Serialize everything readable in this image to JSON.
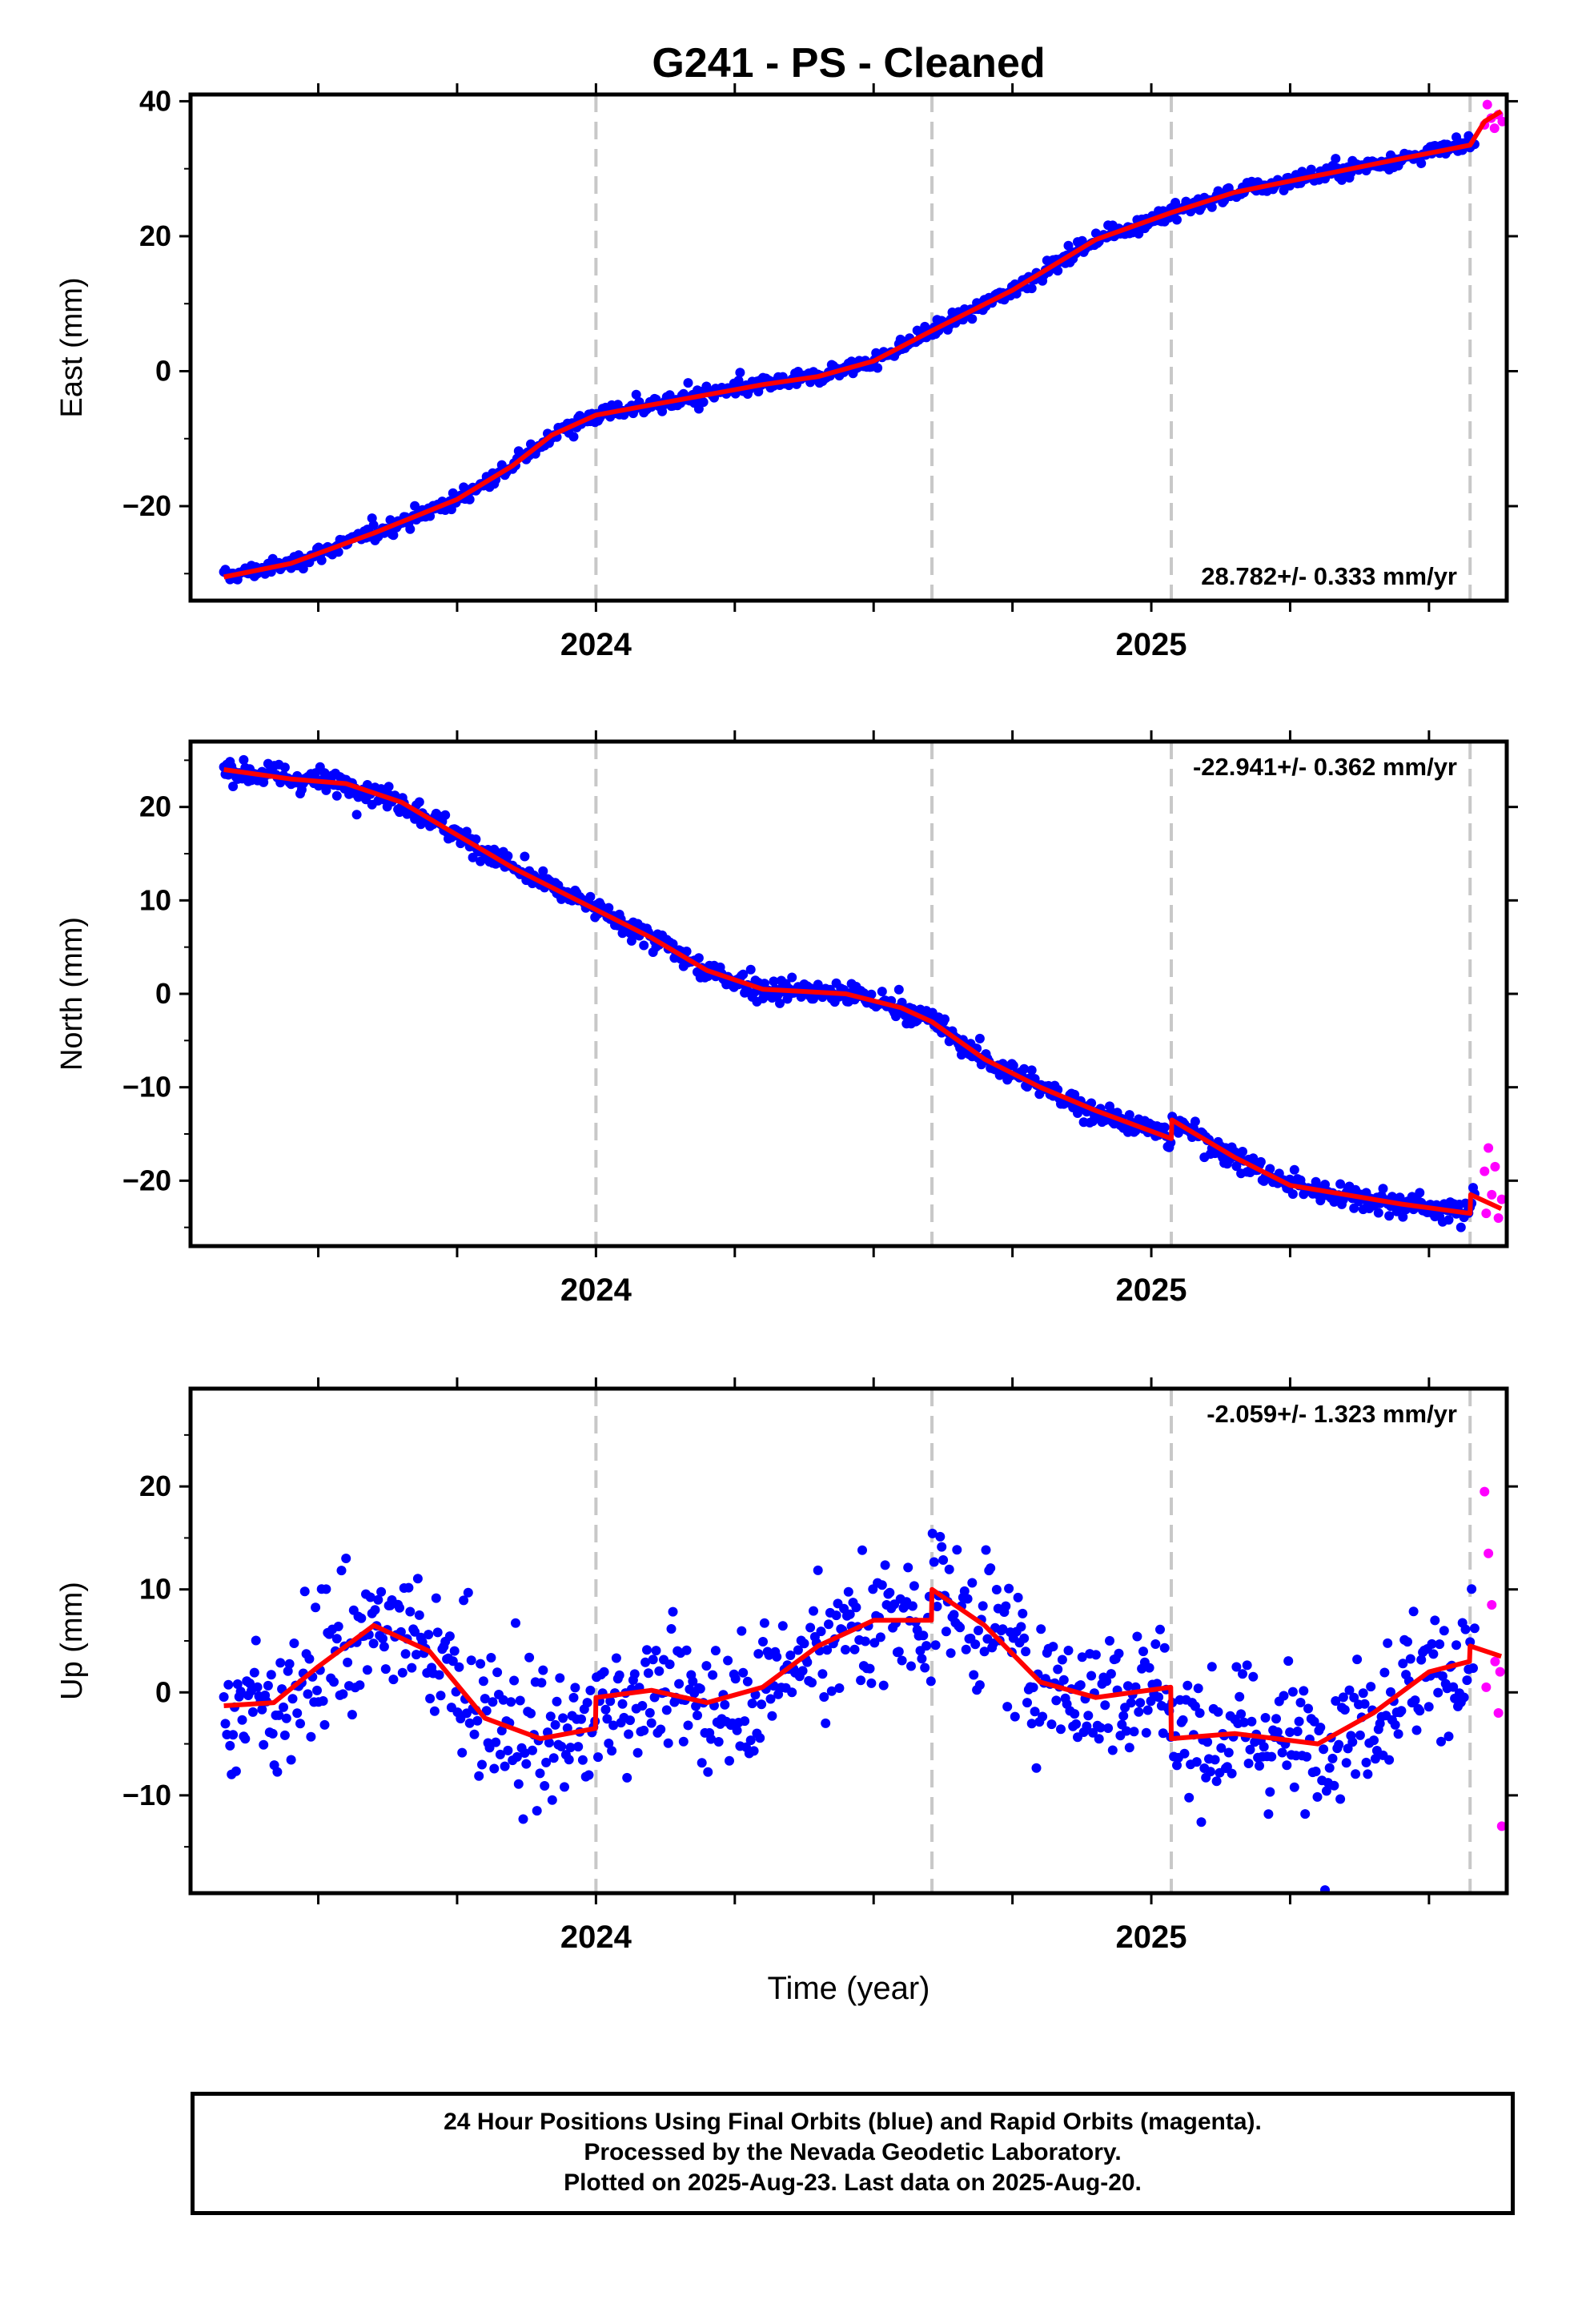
{
  "title": "G241  - PS - Cleaned",
  "xlabel": "Time (year)",
  "footer": {
    "line1": "24 Hour Positions Using Final Orbits (blue) and Rapid Orbits (magenta).",
    "line2": "Processed by the Nevada Geodetic Laboratory.",
    "line3": "Plotted on 2025-Aug-23. Last data on 2025-Aug-20."
  },
  "colors": {
    "final": "#0000ff",
    "rapid": "#ff00ff",
    "fit": "#ff0000",
    "vline": "#c8c8c8"
  },
  "x_axis": {
    "range": [
      2023.27,
      2025.64
    ],
    "ticks": [
      2024,
      2025
    ],
    "tick_labels": [
      "2024",
      "2025"
    ],
    "minor_step": 0.25
  },
  "vertical_lines": [
    2024.0,
    2024.605,
    2025.036,
    2025.574
  ],
  "chart_data": [
    {
      "type": "scatter",
      "component": "east",
      "ylabel": "East (mm)",
      "ylim": [
        -34,
        41
      ],
      "yticks": [
        -20,
        0,
        20,
        40
      ],
      "rate_label": "28.782+/- 0.333 mm/yr",
      "rate_position": "bottom-right",
      "noise": 0.9,
      "trend": [
        [
          2023.33,
          -30.5
        ],
        [
          2023.45,
          -28.5
        ],
        [
          2023.6,
          -24.0
        ],
        [
          2023.75,
          -19.0
        ],
        [
          2023.85,
          -14.0
        ],
        [
          2023.92,
          -9.5
        ],
        [
          2024.0,
          -6.5
        ],
        [
          2024.1,
          -5.0
        ],
        [
          2024.3,
          -2.0
        ],
        [
          2024.4,
          -0.8
        ],
        [
          2024.5,
          1.5
        ],
        [
          2024.605,
          6.0
        ],
        [
          2024.75,
          12.0
        ],
        [
          2024.9,
          19.5
        ],
        [
          2025.036,
          23.5
        ],
        [
          2025.15,
          26.5
        ],
        [
          2025.3,
          29.0
        ],
        [
          2025.45,
          31.5
        ],
        [
          2025.574,
          33.5
        ],
        [
          2025.6,
          37.0
        ],
        [
          2025.63,
          38.5
        ]
      ],
      "rapid": [
        [
          2025.605,
          39.5
        ],
        [
          2025.612,
          37.5
        ],
        [
          2025.618,
          36.0
        ],
        [
          2025.625,
          38.0
        ],
        [
          2025.632,
          37.0
        ],
        [
          2025.6,
          36.5
        ]
      ]
    },
    {
      "type": "scatter",
      "component": "north",
      "ylabel": "North (mm)",
      "ylim": [
        -27,
        27
      ],
      "yticks": [
        -20,
        -10,
        0,
        10,
        20
      ],
      "rate_label": "-22.941+/- 0.362 mm/yr",
      "rate_position": "top-right",
      "noise": 1.0,
      "trend": [
        [
          2023.33,
          24.0
        ],
        [
          2023.45,
          23.0
        ],
        [
          2023.55,
          22.5
        ],
        [
          2023.65,
          20.5
        ],
        [
          2023.75,
          17.0
        ],
        [
          2023.85,
          13.5
        ],
        [
          2024.0,
          9.0
        ],
        [
          2024.1,
          6.0
        ],
        [
          2024.2,
          2.5
        ],
        [
          2024.3,
          0.5
        ],
        [
          2024.45,
          0.0
        ],
        [
          2024.55,
          -1.5
        ],
        [
          2024.605,
          -3.0
        ],
        [
          2024.7,
          -7.0
        ],
        [
          2024.8,
          -10.0
        ],
        [
          2024.9,
          -12.5
        ],
        [
          2025.036,
          -15.5
        ],
        [
          2025.037,
          -13.5
        ],
        [
          2025.15,
          -17.5
        ],
        [
          2025.25,
          -20.5
        ],
        [
          2025.35,
          -21.5
        ],
        [
          2025.45,
          -22.5
        ],
        [
          2025.574,
          -23.5
        ],
        [
          2025.575,
          -21.5
        ],
        [
          2025.63,
          -23.0
        ]
      ],
      "rapid": [
        [
          2025.6,
          -19.0
        ],
        [
          2025.607,
          -16.5
        ],
        [
          2025.613,
          -21.5
        ],
        [
          2025.619,
          -18.5
        ],
        [
          2025.625,
          -24.0
        ],
        [
          2025.631,
          -22.0
        ],
        [
          2025.603,
          -23.5
        ]
      ]
    },
    {
      "type": "scatter",
      "component": "up",
      "ylabel": "Up (mm)",
      "ylim": [
        -19.5,
        29.5
      ],
      "yticks": [
        -10,
        0,
        10,
        20
      ],
      "rate_label": "-2.059+/- 1.323 mm/yr",
      "rate_position": "top-right",
      "noise": 5.0,
      "trend": [
        [
          2023.33,
          -1.3
        ],
        [
          2023.42,
          -1.0
        ],
        [
          2023.5,
          2.5
        ],
        [
          2023.6,
          6.5
        ],
        [
          2023.7,
          4.0
        ],
        [
          2023.8,
          -2.5
        ],
        [
          2023.9,
          -4.5
        ],
        [
          2023.999,
          -3.5
        ],
        [
          2024.0,
          -0.5
        ],
        [
          2024.1,
          0.2
        ],
        [
          2024.2,
          -1.0
        ],
        [
          2024.3,
          0.5
        ],
        [
          2024.4,
          4.5
        ],
        [
          2024.5,
          7.0
        ],
        [
          2024.604,
          7.0
        ],
        [
          2024.605,
          10.0
        ],
        [
          2024.7,
          6.5
        ],
        [
          2024.8,
          1.0
        ],
        [
          2024.9,
          -0.5
        ],
        [
          2025.035,
          0.5
        ],
        [
          2025.036,
          -4.5
        ],
        [
          2025.15,
          -4.0
        ],
        [
          2025.3,
          -5.0
        ],
        [
          2025.4,
          -2.0
        ],
        [
          2025.5,
          2.0
        ],
        [
          2025.573,
          3.0
        ],
        [
          2025.574,
          4.5
        ],
        [
          2025.63,
          3.5
        ]
      ],
      "rapid": [
        [
          2025.6,
          19.5
        ],
        [
          2025.607,
          13.5
        ],
        [
          2025.613,
          8.5
        ],
        [
          2025.619,
          3.0
        ],
        [
          2025.625,
          -2.0
        ],
        [
          2025.631,
          -13.0
        ],
        [
          2025.603,
          0.5
        ],
        [
          2025.628,
          2.0
        ]
      ]
    }
  ]
}
